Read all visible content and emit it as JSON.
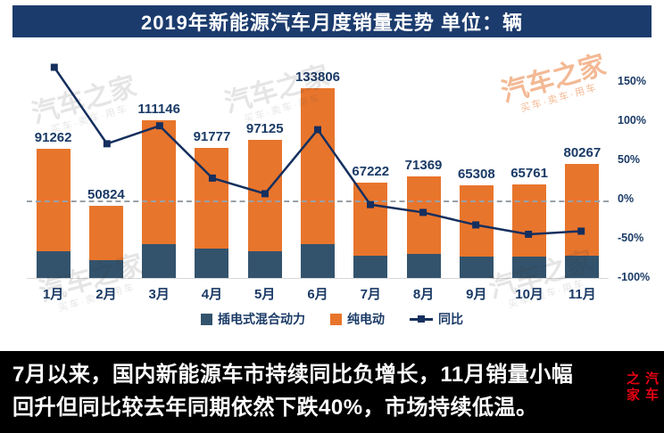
{
  "title": {
    "text": "2019年新能源汽车月度销量走势  单位：辆"
  },
  "colors": {
    "title_bg": "#1b3b6d",
    "phev_bar": "#33536d",
    "bev_bar": "#e8752c",
    "yoy_line": "#152f5e",
    "label_navy": "#1a3a66",
    "footer_bg": "#000000",
    "logo_red": "#e60012"
  },
  "chart_data": {
    "type": "bar",
    "subtype": "stacked-bar-with-line",
    "categories": [
      "1月",
      "2月",
      "3月",
      "4月",
      "5月",
      "6月",
      "7月",
      "8月",
      "9月",
      "10月",
      "11月"
    ],
    "totals_labeled": [
      91262,
      50824,
      111146,
      91777,
      97125,
      133806,
      67222,
      71369,
      65308,
      65761,
      80267
    ],
    "series": [
      {
        "name": "插电式混合动力",
        "type": "bar",
        "stack": true,
        "color": "#33536d",
        "values": [
          19000,
          12500,
          24000,
          21000,
          19000,
          24000,
          16000,
          17000,
          15000,
          15000,
          16000
        ]
      },
      {
        "name": "纯电动",
        "type": "bar",
        "stack": true,
        "color": "#e8752c",
        "values": [
          72262,
          38324,
          87146,
          70777,
          78125,
          109806,
          51222,
          54369,
          50308,
          50761,
          64267
        ]
      },
      {
        "name": "同比",
        "type": "line",
        "axis": "right",
        "color": "#152f5e",
        "values_pct": [
          170,
          72,
          95,
          28,
          8,
          90,
          -6,
          -16,
          -32,
          -44,
          -40
        ]
      }
    ],
    "y_left": {
      "min": 0,
      "max": 160000
    },
    "y_right": {
      "min": -100,
      "max": 190,
      "ticks": [
        150,
        100,
        50,
        0,
        -50,
        -100
      ],
      "tick_suffix": "%"
    },
    "zero_line_pct": 0,
    "grid": "off",
    "legend_position": "bottom",
    "legend": [
      "插电式混合动力",
      "纯电动",
      "同比"
    ]
  },
  "footer": {
    "lines": [
      "7月以来，国内新能源车市持续同比负增长，11月销量小幅",
      "回升但同比较去年同期依然下跌40%，市场持续低温。"
    ],
    "logo": "汽车之家"
  },
  "watermark": {
    "brand": "汽车之家",
    "tagline": "买车·卖车·用车"
  }
}
